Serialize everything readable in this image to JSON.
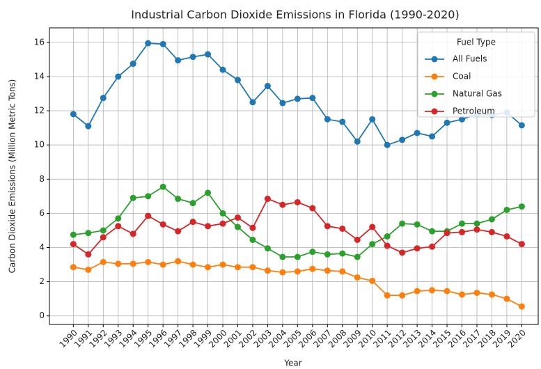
{
  "chart_data": {
    "type": "line",
    "title": "Industrial Carbon Dioxide Emissions in Florida (1990-2020)",
    "x_label": "Year",
    "y_label": "Carbon Dioxide Emissions (Million Metric Tons)",
    "x": [
      1990,
      1991,
      1992,
      1993,
      1994,
      1995,
      1996,
      1997,
      1998,
      1999,
      2000,
      2001,
      2002,
      2003,
      2004,
      2005,
      2006,
      2007,
      2008,
      2009,
      2010,
      2011,
      2012,
      2013,
      2014,
      2015,
      2016,
      2017,
      2018,
      2019,
      2020
    ],
    "series": [
      {
        "name": "All Fuels",
        "color": "#1f77b4",
        "values": [
          11.8,
          11.1,
          12.75,
          14.0,
          14.75,
          15.95,
          15.9,
          14.95,
          15.15,
          15.3,
          14.4,
          13.8,
          12.5,
          13.45,
          12.45,
          12.7,
          12.75,
          11.5,
          11.35,
          10.2,
          11.5,
          10.0,
          10.3,
          10.7,
          10.5,
          11.3,
          11.5,
          11.8,
          11.75,
          11.9,
          11.15
        ]
      },
      {
        "name": "Coal",
        "color": "#ff7f0e",
        "values": [
          2.85,
          2.7,
          3.15,
          3.05,
          3.05,
          3.15,
          3.0,
          3.2,
          3.0,
          2.85,
          3.0,
          2.85,
          2.85,
          2.65,
          2.55,
          2.6,
          2.75,
          2.65,
          2.6,
          2.25,
          2.05,
          1.2,
          1.2,
          1.45,
          1.5,
          1.45,
          1.25,
          1.35,
          1.25,
          1.0,
          0.55
        ]
      },
      {
        "name": "Natural Gas",
        "color": "#2ca02c",
        "values": [
          4.75,
          4.85,
          5.0,
          5.7,
          6.9,
          7.0,
          7.55,
          6.85,
          6.6,
          7.2,
          6.0,
          5.2,
          4.45,
          3.95,
          3.45,
          3.45,
          3.75,
          3.6,
          3.65,
          3.45,
          4.2,
          4.65,
          5.4,
          5.35,
          4.95,
          4.95,
          5.4,
          5.4,
          5.65,
          6.2,
          6.4
        ]
      },
      {
        "name": "Petroleum",
        "color": "#d62728",
        "values": [
          4.2,
          3.6,
          4.6,
          5.25,
          4.8,
          5.85,
          5.35,
          4.95,
          5.5,
          5.25,
          5.4,
          5.75,
          5.15,
          6.85,
          6.5,
          6.65,
          6.3,
          5.25,
          5.1,
          4.45,
          5.2,
          4.1,
          3.7,
          3.95,
          4.05,
          4.85,
          4.9,
          5.05,
          4.9,
          4.65,
          4.2
        ]
      }
    ],
    "xlim": [
      1988.4,
      2021.1
    ],
    "xticks": [
      1990,
      1991,
      1992,
      1993,
      1994,
      1995,
      1996,
      1997,
      1998,
      1999,
      2000,
      2001,
      2002,
      2003,
      2004,
      2005,
      2006,
      2007,
      2008,
      2009,
      2010,
      2011,
      2012,
      2013,
      2014,
      2015,
      2016,
      2017,
      2018,
      2019,
      2020
    ],
    "ylim": [
      -0.5,
      16.85
    ],
    "yticks": [
      0,
      2,
      4,
      6,
      8,
      10,
      12,
      14,
      16
    ],
    "grid": true,
    "legend_title": "Fuel Type",
    "legend_position": "upper right"
  }
}
